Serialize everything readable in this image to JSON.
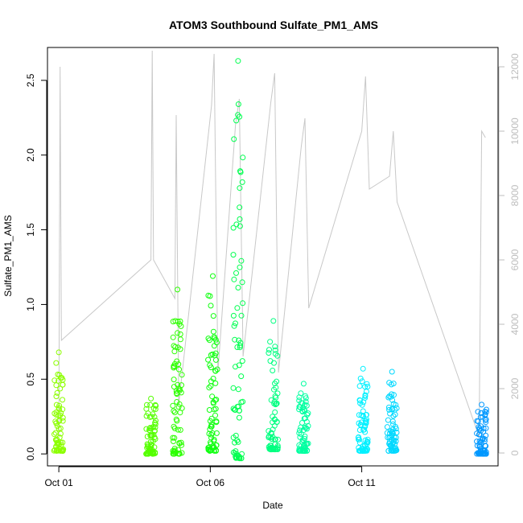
{
  "chart_data": {
    "type": "scatter",
    "title": "ATOM3 Southbound Sulfate_PM1_AMS",
    "xlabel": "Date",
    "ylabel": "Sulfate_PM1_AMS",
    "x_ticks": [
      "Oct 01",
      "Oct 06",
      "Oct 11"
    ],
    "y_ticks": [
      "0.0",
      "0.5",
      "1.0",
      "1.5",
      "2.0",
      "2.5"
    ],
    "y2_ticks": [
      "0",
      "2000",
      "4000",
      "6000",
      "8000",
      "10000",
      "12000"
    ],
    "xlim": [
      "2017-09-30T15:00",
      "2017-10-15T12:00"
    ],
    "ylim": [
      -0.08,
      2.72
    ],
    "y2lim": [
      -400,
      12600
    ],
    "y2_axis_color": "#bdbdbd",
    "grid": false,
    "series": [
      {
        "kind": "scatter",
        "marker": "open-circle",
        "color_scale": [
          "#7fff00",
          "#00ff40",
          "#00ffff",
          "#0080ff"
        ],
        "clusters": [
          {
            "x_center": "2017-10-01T00:00",
            "ymin": 0.02,
            "ymax": 0.68,
            "color": "#8cff00"
          },
          {
            "x_center": "2017-10-04T01:00",
            "ymin": 0.0,
            "ymax": 0.37,
            "color": "#55ff00"
          },
          {
            "x_center": "2017-10-04T22:00",
            "ymin": 0.0,
            "ymax": 1.1,
            "color": "#2cff00"
          },
          {
            "x_center": "2017-10-06T02:00",
            "ymin": 0.02,
            "ymax": 1.19,
            "color": "#10ff10"
          },
          {
            "x_center": "2017-10-06T22:00",
            "ymin": -0.03,
            "ymax": 2.63,
            "color": "#00ff50"
          },
          {
            "x_center": "2017-10-08T02:00",
            "ymin": 0.03,
            "ymax": 0.89,
            "color": "#00ff80"
          },
          {
            "x_center": "2017-10-09T02:00",
            "ymin": 0.02,
            "ymax": 0.47,
            "color": "#00ffa0"
          },
          {
            "x_center": "2017-10-11T01:00",
            "ymin": 0.02,
            "ymax": 0.57,
            "color": "#00f0ff"
          },
          {
            "x_center": "2017-10-12T00:00",
            "ymin": 0.02,
            "ymax": 0.55,
            "color": "#00d8ff"
          },
          {
            "x_center": "2017-10-14T23:00",
            "ymin": 0.0,
            "ymax": 0.33,
            "color": "#0098ff"
          }
        ]
      },
      {
        "kind": "line",
        "axis": "right",
        "color": "#c8c8c8",
        "path": [
          [
            "2017-10-01T00:00",
            500
          ],
          [
            "2017-10-01T01:00",
            12000
          ],
          [
            "2017-10-01T02:00",
            3500
          ],
          [
            "2017-10-04T01:00",
            6000
          ],
          [
            "2017-10-04T02:00",
            12500
          ],
          [
            "2017-10-04T03:00",
            6000
          ],
          [
            "2017-10-04T20:00",
            4800
          ],
          [
            "2017-10-04T21:00",
            10500
          ],
          [
            "2017-10-04T23:00",
            1500
          ],
          [
            "2017-10-06T01:00",
            10800
          ],
          [
            "2017-10-06T03:00",
            12400
          ],
          [
            "2017-10-06T06:00",
            2500
          ],
          [
            "2017-10-06T20:00",
            10200
          ],
          [
            "2017-10-06T23:00",
            11000
          ],
          [
            "2017-10-07T02:00",
            3000
          ],
          [
            "2017-10-08T00:00",
            10900
          ],
          [
            "2017-10-08T03:00",
            11800
          ],
          [
            "2017-10-08T06:00",
            2500
          ],
          [
            "2017-10-09T00:00",
            9500
          ],
          [
            "2017-10-09T03:00",
            10400
          ],
          [
            "2017-10-09T06:00",
            4500
          ],
          [
            "2017-10-11T00:00",
            10000
          ],
          [
            "2017-10-11T03:00",
            11700
          ],
          [
            "2017-10-11T06:00",
            8200
          ],
          [
            "2017-10-11T22:00",
            8600
          ],
          [
            "2017-10-12T01:00",
            10000
          ],
          [
            "2017-10-12T04:00",
            7800
          ],
          [
            "2017-10-14T21:00",
            500
          ],
          [
            "2017-10-14T23:00",
            10000
          ],
          [
            "2017-10-15T02:00",
            9800
          ]
        ]
      }
    ]
  }
}
